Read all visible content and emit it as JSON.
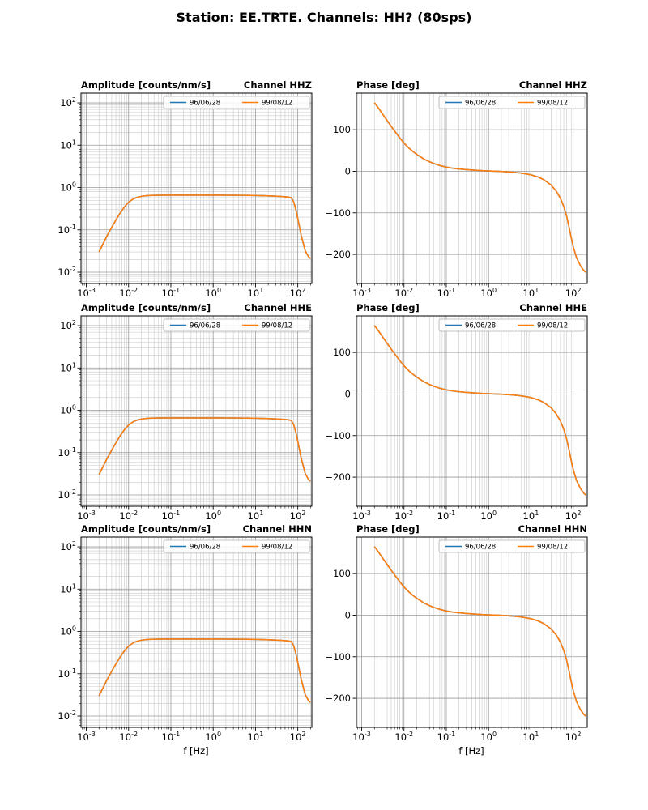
{
  "figure_title": "Station: EE.TRTE. Channels: HH? (80sps)",
  "x_axis_label": "f [Hz]",
  "legend_labels": [
    "96/06/28",
    "99/08/12"
  ],
  "colors": {
    "series_blue": "#1f77b4",
    "series_orange": "#ff7f0e",
    "grid_major": "#9a9a9a",
    "grid_minor": "#c9c9c9",
    "axes": "#000000",
    "legend_border": "#b0b0b0",
    "background": "#ffffff"
  },
  "chart_data": [
    {
      "id": "amp-hhz",
      "type": "line",
      "title": "Amplitude [counts/nm/s]",
      "channel": "Channel HHZ",
      "xlabel": "",
      "ylabel": "",
      "xscale": "log",
      "yscale": "log",
      "xlim": [
        0.00075,
        215
      ],
      "ylim": [
        0.0054,
        170
      ],
      "xticks_exp": [
        -3,
        -2,
        -1,
        0,
        1,
        2
      ],
      "yticks_exp": [
        -2,
        -1,
        0,
        1,
        2
      ],
      "grid": "both",
      "legend_loc": "upper right",
      "x": [
        0.002,
        0.0025,
        0.003,
        0.004,
        0.005,
        0.006,
        0.008,
        0.01,
        0.013,
        0.017,
        0.022,
        0.03,
        0.04,
        0.05,
        0.07,
        0.1,
        0.15,
        0.2,
        0.3,
        0.5,
        0.7,
        1,
        1.5,
        2,
        3,
        5,
        7,
        10,
        15,
        20,
        30,
        40,
        50,
        60,
        70,
        80,
        90,
        100,
        120,
        150,
        180,
        200
      ],
      "series": [
        {
          "name": "96/06/28",
          "color": "#1f77b4",
          "values": [
            0.03,
            0.047,
            0.068,
            0.115,
            0.17,
            0.23,
            0.35,
            0.45,
            0.54,
            0.6,
            0.63,
            0.65,
            0.655,
            0.658,
            0.66,
            0.66,
            0.66,
            0.66,
            0.66,
            0.66,
            0.66,
            0.66,
            0.66,
            0.659,
            0.658,
            0.655,
            0.652,
            0.648,
            0.642,
            0.635,
            0.625,
            0.615,
            0.605,
            0.595,
            0.575,
            0.46,
            0.3,
            0.185,
            0.075,
            0.032,
            0.023,
            0.021
          ]
        },
        {
          "name": "99/08/12",
          "color": "#ff7f0e",
          "values": [
            0.03,
            0.047,
            0.068,
            0.115,
            0.17,
            0.23,
            0.35,
            0.45,
            0.54,
            0.6,
            0.63,
            0.65,
            0.655,
            0.658,
            0.66,
            0.66,
            0.66,
            0.66,
            0.66,
            0.66,
            0.66,
            0.66,
            0.66,
            0.659,
            0.658,
            0.655,
            0.652,
            0.648,
            0.642,
            0.635,
            0.625,
            0.615,
            0.605,
            0.595,
            0.575,
            0.46,
            0.3,
            0.185,
            0.075,
            0.032,
            0.023,
            0.021
          ]
        }
      ]
    },
    {
      "id": "phase-hhz",
      "type": "line",
      "title": "Phase [deg]",
      "channel": "Channel HHZ",
      "xlabel": "",
      "ylabel": "",
      "xscale": "log",
      "yscale": "linear",
      "xlim": [
        0.00075,
        215
      ],
      "ylim": [
        -270,
        188
      ],
      "xticks_exp": [
        -3,
        -2,
        -1,
        0,
        1,
        2
      ],
      "yticks": [
        -200,
        -100,
        0,
        100
      ],
      "grid": "both",
      "legend_loc": "upper right",
      "x": [
        0.002,
        0.0025,
        0.003,
        0.004,
        0.005,
        0.006,
        0.008,
        0.01,
        0.013,
        0.017,
        0.022,
        0.03,
        0.04,
        0.05,
        0.07,
        0.1,
        0.15,
        0.2,
        0.3,
        0.5,
        0.7,
        1,
        1.5,
        2,
        3,
        5,
        7,
        10,
        15,
        20,
        30,
        40,
        50,
        60,
        70,
        80,
        90,
        100,
        120,
        150,
        180,
        200
      ],
      "series": [
        {
          "name": "96/06/28",
          "color": "#1f77b4",
          "values": [
            165,
            152,
            140,
            122,
            108,
            97,
            80,
            68,
            56,
            46,
            38,
            29,
            23,
            19,
            14,
            10,
            7,
            5.5,
            4,
            2.5,
            1.5,
            0.8,
            0,
            -0.5,
            -1.5,
            -3.5,
            -5.5,
            -8.5,
            -14,
            -20,
            -33,
            -48,
            -65,
            -85,
            -108,
            -135,
            -160,
            -181,
            -208,
            -228,
            -239,
            -243
          ]
        },
        {
          "name": "99/08/12",
          "color": "#ff7f0e",
          "values": [
            165,
            152,
            140,
            122,
            108,
            97,
            80,
            68,
            56,
            46,
            38,
            29,
            23,
            19,
            14,
            10,
            7,
            5.5,
            4,
            2.5,
            1.5,
            0.8,
            0,
            -0.5,
            -1.5,
            -3.5,
            -5.5,
            -8.5,
            -14,
            -20,
            -33,
            -48,
            -65,
            -85,
            -108,
            -135,
            -160,
            -181,
            -208,
            -228,
            -239,
            -243
          ]
        }
      ]
    },
    {
      "id": "amp-hhe",
      "type": "line",
      "title": "Amplitude [counts/nm/s]",
      "channel": "Channel HHE",
      "xlabel": "",
      "ylabel": "",
      "xscale": "log",
      "yscale": "log",
      "xlim": [
        0.00075,
        215
      ],
      "ylim": [
        0.0054,
        170
      ],
      "xticks_exp": [
        -3,
        -2,
        -1,
        0,
        1,
        2
      ],
      "yticks_exp": [
        -2,
        -1,
        0,
        1,
        2
      ],
      "grid": "both",
      "legend_loc": "upper right",
      "x": [
        0.002,
        0.0025,
        0.003,
        0.004,
        0.005,
        0.006,
        0.008,
        0.01,
        0.013,
        0.017,
        0.022,
        0.03,
        0.04,
        0.05,
        0.07,
        0.1,
        0.15,
        0.2,
        0.3,
        0.5,
        0.7,
        1,
        1.5,
        2,
        3,
        5,
        7,
        10,
        15,
        20,
        30,
        40,
        50,
        60,
        70,
        80,
        90,
        100,
        120,
        150,
        180,
        200
      ],
      "series": [
        {
          "name": "96/06/28",
          "color": "#1f77b4",
          "values": [
            0.03,
            0.047,
            0.068,
            0.115,
            0.17,
            0.23,
            0.35,
            0.45,
            0.54,
            0.6,
            0.63,
            0.65,
            0.655,
            0.658,
            0.66,
            0.66,
            0.66,
            0.66,
            0.66,
            0.66,
            0.66,
            0.66,
            0.66,
            0.659,
            0.658,
            0.655,
            0.652,
            0.648,
            0.642,
            0.635,
            0.625,
            0.615,
            0.605,
            0.595,
            0.575,
            0.46,
            0.3,
            0.185,
            0.075,
            0.032,
            0.023,
            0.021
          ]
        },
        {
          "name": "99/08/12",
          "color": "#ff7f0e",
          "values": [
            0.03,
            0.047,
            0.068,
            0.115,
            0.17,
            0.23,
            0.35,
            0.45,
            0.54,
            0.6,
            0.63,
            0.65,
            0.655,
            0.658,
            0.66,
            0.66,
            0.66,
            0.66,
            0.66,
            0.66,
            0.66,
            0.66,
            0.66,
            0.659,
            0.658,
            0.655,
            0.652,
            0.648,
            0.642,
            0.635,
            0.625,
            0.615,
            0.605,
            0.595,
            0.575,
            0.46,
            0.3,
            0.185,
            0.075,
            0.032,
            0.023,
            0.021
          ]
        }
      ]
    },
    {
      "id": "phase-hhe",
      "type": "line",
      "title": "Phase [deg]",
      "channel": "Channel HHE",
      "xlabel": "",
      "ylabel": "",
      "xscale": "log",
      "yscale": "linear",
      "xlim": [
        0.00075,
        215
      ],
      "ylim": [
        -270,
        188
      ],
      "xticks_exp": [
        -3,
        -2,
        -1,
        0,
        1,
        2
      ],
      "yticks": [
        -200,
        -100,
        0,
        100
      ],
      "grid": "both",
      "legend_loc": "upper right",
      "x": [
        0.002,
        0.0025,
        0.003,
        0.004,
        0.005,
        0.006,
        0.008,
        0.01,
        0.013,
        0.017,
        0.022,
        0.03,
        0.04,
        0.05,
        0.07,
        0.1,
        0.15,
        0.2,
        0.3,
        0.5,
        0.7,
        1,
        1.5,
        2,
        3,
        5,
        7,
        10,
        15,
        20,
        30,
        40,
        50,
        60,
        70,
        80,
        90,
        100,
        120,
        150,
        180,
        200
      ],
      "series": [
        {
          "name": "96/06/28",
          "color": "#1f77b4",
          "values": [
            165,
            152,
            140,
            122,
            108,
            97,
            80,
            68,
            56,
            46,
            38,
            29,
            23,
            19,
            14,
            10,
            7,
            5.5,
            4,
            2.5,
            1.5,
            0.8,
            0,
            -0.5,
            -1.5,
            -3.5,
            -5.5,
            -8.5,
            -14,
            -20,
            -33,
            -48,
            -65,
            -85,
            -108,
            -135,
            -160,
            -181,
            -208,
            -228,
            -239,
            -243
          ]
        },
        {
          "name": "99/08/12",
          "color": "#ff7f0e",
          "values": [
            165,
            152,
            140,
            122,
            108,
            97,
            80,
            68,
            56,
            46,
            38,
            29,
            23,
            19,
            14,
            10,
            7,
            5.5,
            4,
            2.5,
            1.5,
            0.8,
            0,
            -0.5,
            -1.5,
            -3.5,
            -5.5,
            -8.5,
            -14,
            -20,
            -33,
            -48,
            -65,
            -85,
            -108,
            -135,
            -160,
            -181,
            -208,
            -228,
            -239,
            -243
          ]
        }
      ]
    },
    {
      "id": "amp-hhn",
      "type": "line",
      "title": "Amplitude [counts/nm/s]",
      "channel": "Channel HHN",
      "xlabel": "f [Hz]",
      "ylabel": "",
      "xscale": "log",
      "yscale": "log",
      "xlim": [
        0.00075,
        215
      ],
      "ylim": [
        0.0054,
        170
      ],
      "xticks_exp": [
        -3,
        -2,
        -1,
        0,
        1,
        2
      ],
      "yticks_exp": [
        -2,
        -1,
        0,
        1,
        2
      ],
      "grid": "both",
      "legend_loc": "upper right",
      "x": [
        0.002,
        0.0025,
        0.003,
        0.004,
        0.005,
        0.006,
        0.008,
        0.01,
        0.013,
        0.017,
        0.022,
        0.03,
        0.04,
        0.05,
        0.07,
        0.1,
        0.15,
        0.2,
        0.3,
        0.5,
        0.7,
        1,
        1.5,
        2,
        3,
        5,
        7,
        10,
        15,
        20,
        30,
        40,
        50,
        60,
        70,
        80,
        90,
        100,
        120,
        150,
        180,
        200
      ],
      "series": [
        {
          "name": "96/06/28",
          "color": "#1f77b4",
          "values": [
            0.03,
            0.047,
            0.068,
            0.115,
            0.17,
            0.23,
            0.35,
            0.45,
            0.54,
            0.6,
            0.63,
            0.65,
            0.655,
            0.658,
            0.66,
            0.66,
            0.66,
            0.66,
            0.66,
            0.66,
            0.66,
            0.66,
            0.66,
            0.659,
            0.658,
            0.655,
            0.652,
            0.648,
            0.642,
            0.635,
            0.625,
            0.615,
            0.605,
            0.595,
            0.575,
            0.46,
            0.3,
            0.185,
            0.075,
            0.032,
            0.023,
            0.021
          ]
        },
        {
          "name": "99/08/12",
          "color": "#ff7f0e",
          "values": [
            0.03,
            0.047,
            0.068,
            0.115,
            0.17,
            0.23,
            0.35,
            0.45,
            0.54,
            0.6,
            0.63,
            0.65,
            0.655,
            0.658,
            0.66,
            0.66,
            0.66,
            0.66,
            0.66,
            0.66,
            0.66,
            0.66,
            0.66,
            0.659,
            0.658,
            0.655,
            0.652,
            0.648,
            0.642,
            0.635,
            0.625,
            0.615,
            0.605,
            0.595,
            0.575,
            0.46,
            0.3,
            0.185,
            0.075,
            0.032,
            0.023,
            0.021
          ]
        }
      ]
    },
    {
      "id": "phase-hhn",
      "type": "line",
      "title": "Phase [deg]",
      "channel": "Channel HHN",
      "xlabel": "f [Hz]",
      "ylabel": "",
      "xscale": "log",
      "yscale": "linear",
      "xlim": [
        0.00075,
        215
      ],
      "ylim": [
        -270,
        188
      ],
      "xticks_exp": [
        -3,
        -2,
        -1,
        0,
        1,
        2
      ],
      "yticks": [
        -200,
        -100,
        0,
        100
      ],
      "grid": "both",
      "legend_loc": "upper right",
      "x": [
        0.002,
        0.0025,
        0.003,
        0.004,
        0.005,
        0.006,
        0.008,
        0.01,
        0.013,
        0.017,
        0.022,
        0.03,
        0.04,
        0.05,
        0.07,
        0.1,
        0.15,
        0.2,
        0.3,
        0.5,
        0.7,
        1,
        1.5,
        2,
        3,
        5,
        7,
        10,
        15,
        20,
        30,
        40,
        50,
        60,
        70,
        80,
        90,
        100,
        120,
        150,
        180,
        200
      ],
      "series": [
        {
          "name": "96/06/28",
          "color": "#1f77b4",
          "values": [
            165,
            152,
            140,
            122,
            108,
            97,
            80,
            68,
            56,
            46,
            38,
            29,
            23,
            19,
            14,
            10,
            7,
            5.5,
            4,
            2.5,
            1.5,
            0.8,
            0,
            -0.5,
            -1.5,
            -3.5,
            -5.5,
            -8.5,
            -14,
            -20,
            -33,
            -48,
            -65,
            -85,
            -108,
            -135,
            -160,
            -181,
            -208,
            -228,
            -239,
            -243
          ]
        },
        {
          "name": "99/08/12",
          "color": "#ff7f0e",
          "values": [
            165,
            152,
            140,
            122,
            108,
            97,
            80,
            68,
            56,
            46,
            38,
            29,
            23,
            19,
            14,
            10,
            7,
            5.5,
            4,
            2.5,
            1.5,
            0.8,
            0,
            -0.5,
            -1.5,
            -3.5,
            -5.5,
            -8.5,
            -14,
            -20,
            -33,
            -48,
            -65,
            -85,
            -108,
            -135,
            -160,
            -181,
            -208,
            -228,
            -239,
            -243
          ]
        }
      ]
    }
  ]
}
